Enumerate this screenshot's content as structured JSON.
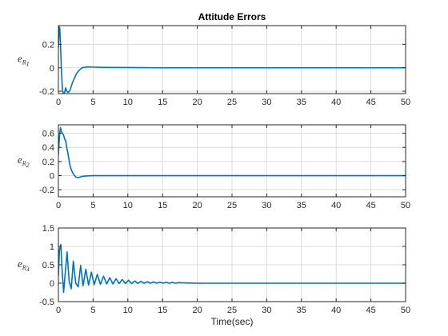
{
  "chart_data": [
    {
      "type": "line",
      "title": "Attitude Errors",
      "ylabel": "e",
      "ylabel_sub": "R",
      "ylabel_subsub": "1",
      "xlabel": "",
      "xlim": [
        0,
        50
      ],
      "ylim": [
        -0.22,
        0.36
      ],
      "xticks": [
        0,
        5,
        10,
        15,
        20,
        25,
        30,
        35,
        40,
        45,
        50
      ],
      "yticks": [
        -0.2,
        0,
        0.2
      ],
      "ytick_labels": [
        "-0.2",
        "0",
        "0.2"
      ],
      "grid": true,
      "color": "#0072BD",
      "x": [
        0,
        0.1,
        0.2,
        0.3,
        0.45,
        0.6,
        0.75,
        0.9,
        1.05,
        1.2,
        1.4,
        1.6,
        1.8,
        2.0,
        2.3,
        2.6,
        3.0,
        3.4,
        3.8,
        4.2,
        5,
        7,
        10,
        15,
        20,
        30,
        40,
        50
      ],
      "y": [
        0.17,
        0.35,
        0.34,
        0.2,
        -0.05,
        -0.2,
        -0.22,
        -0.21,
        -0.17,
        -0.2,
        -0.21,
        -0.2,
        -0.17,
        -0.13,
        -0.09,
        -0.05,
        -0.02,
        0.0,
        0.005,
        0.008,
        0.006,
        0.003,
        0.002,
        0.0,
        0.0,
        0.0,
        0.0,
        0.0
      ]
    },
    {
      "type": "line",
      "title": "",
      "ylabel": "e",
      "ylabel_sub": "R",
      "ylabel_subsub": "2",
      "xlabel": "",
      "xlim": [
        0,
        50
      ],
      "ylim": [
        -0.3,
        0.72
      ],
      "xticks": [
        0,
        5,
        10,
        15,
        20,
        25,
        30,
        35,
        40,
        45,
        50
      ],
      "yticks": [
        -0.2,
        0,
        0.2,
        0.4,
        0.6
      ],
      "ytick_labels": [
        "-0.2",
        "0",
        "0.2",
        "0.4",
        "0.6"
      ],
      "grid": true,
      "color": "#0072BD",
      "x": [
        0,
        0.15,
        0.3,
        0.45,
        0.6,
        0.75,
        0.9,
        1.05,
        1.2,
        1.4,
        1.6,
        1.8,
        2.0,
        2.2,
        2.5,
        2.8,
        3.1,
        3.5,
        4.0,
        5,
        7,
        10,
        20,
        30,
        40,
        50
      ],
      "y": [
        0.3,
        0.55,
        0.68,
        0.62,
        0.6,
        0.57,
        0.52,
        0.49,
        0.4,
        0.3,
        0.18,
        0.1,
        0.05,
        0.02,
        -0.02,
        -0.03,
        -0.02,
        -0.01,
        -0.005,
        0.0,
        0.0,
        0.0,
        0.0,
        0.0,
        0.0,
        0.0
      ]
    },
    {
      "type": "line",
      "title": "",
      "ylabel": "e",
      "ylabel_sub": "R",
      "ylabel_subsub": "3",
      "xlabel": "Time(sec)",
      "xlim": [
        0,
        50
      ],
      "ylim": [
        -0.5,
        1.5
      ],
      "xticks": [
        0,
        5,
        10,
        15,
        20,
        25,
        30,
        35,
        40,
        45,
        50
      ],
      "yticks": [
        -0.5,
        0,
        0.5,
        1,
        1.5
      ],
      "ytick_labels": [
        "-0.5",
        "0",
        "0.5",
        "1",
        "1.5"
      ],
      "grid": true,
      "color": "#0072BD",
      "x": [
        0,
        0.15,
        0.35,
        0.55,
        0.75,
        0.95,
        1.25,
        1.55,
        1.85,
        2.15,
        2.5,
        2.85,
        3.2,
        3.55,
        3.95,
        4.35,
        4.75,
        5.15,
        5.6,
        6.05,
        6.5,
        6.95,
        7.4,
        7.85,
        8.3,
        8.75,
        9.2,
        9.65,
        10.1,
        10.55,
        11.0,
        11.45,
        11.9,
        12.35,
        12.8,
        13.25,
        13.7,
        14.15,
        14.6,
        15.05,
        15.5,
        15.95,
        16.4,
        16.85,
        17.3,
        18,
        19,
        20,
        25,
        30,
        35,
        40,
        45,
        50
      ],
      "y": [
        0.2,
        0.9,
        1.05,
        0.3,
        -0.25,
        0.2,
        0.85,
        0.05,
        -0.15,
        0.6,
        0.0,
        -0.1,
        0.48,
        -0.07,
        0.38,
        -0.05,
        0.3,
        -0.04,
        0.24,
        -0.03,
        0.19,
        -0.02,
        0.15,
        -0.02,
        0.12,
        -0.01,
        0.1,
        -0.01,
        0.08,
        -0.01,
        0.06,
        -0.005,
        0.05,
        -0.005,
        0.04,
        0.0,
        0.035,
        0.0,
        0.03,
        0.0,
        0.025,
        0.0,
        0.02,
        0.0,
        0.015,
        0.01,
        0.005,
        0.0,
        0.0,
        0.0,
        0.0,
        0.0,
        0.0,
        0.0
      ]
    }
  ]
}
